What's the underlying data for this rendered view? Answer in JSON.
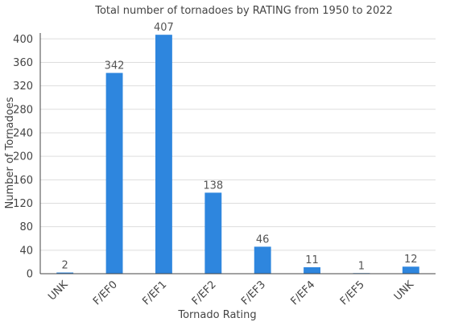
{
  "chart_data": {
    "type": "bar",
    "title": "Total number of tornadoes by RATING from 1950 to 2022",
    "xlabel": "Tornado Rating",
    "ylabel": "Number of Tornadoes",
    "categories": [
      "UNK",
      "F/EF0",
      "F/EF1",
      "F/EF2",
      "F/EF3",
      "F/EF4",
      "F/EF5",
      "UNK"
    ],
    "values": [
      2,
      342,
      407,
      138,
      46,
      11,
      1,
      12
    ],
    "ylim": [
      0,
      410
    ],
    "yticks": [
      0,
      40,
      80,
      120,
      160,
      200,
      240,
      280,
      320,
      360,
      400
    ],
    "grid": true,
    "bar_color": "#2e86de"
  }
}
